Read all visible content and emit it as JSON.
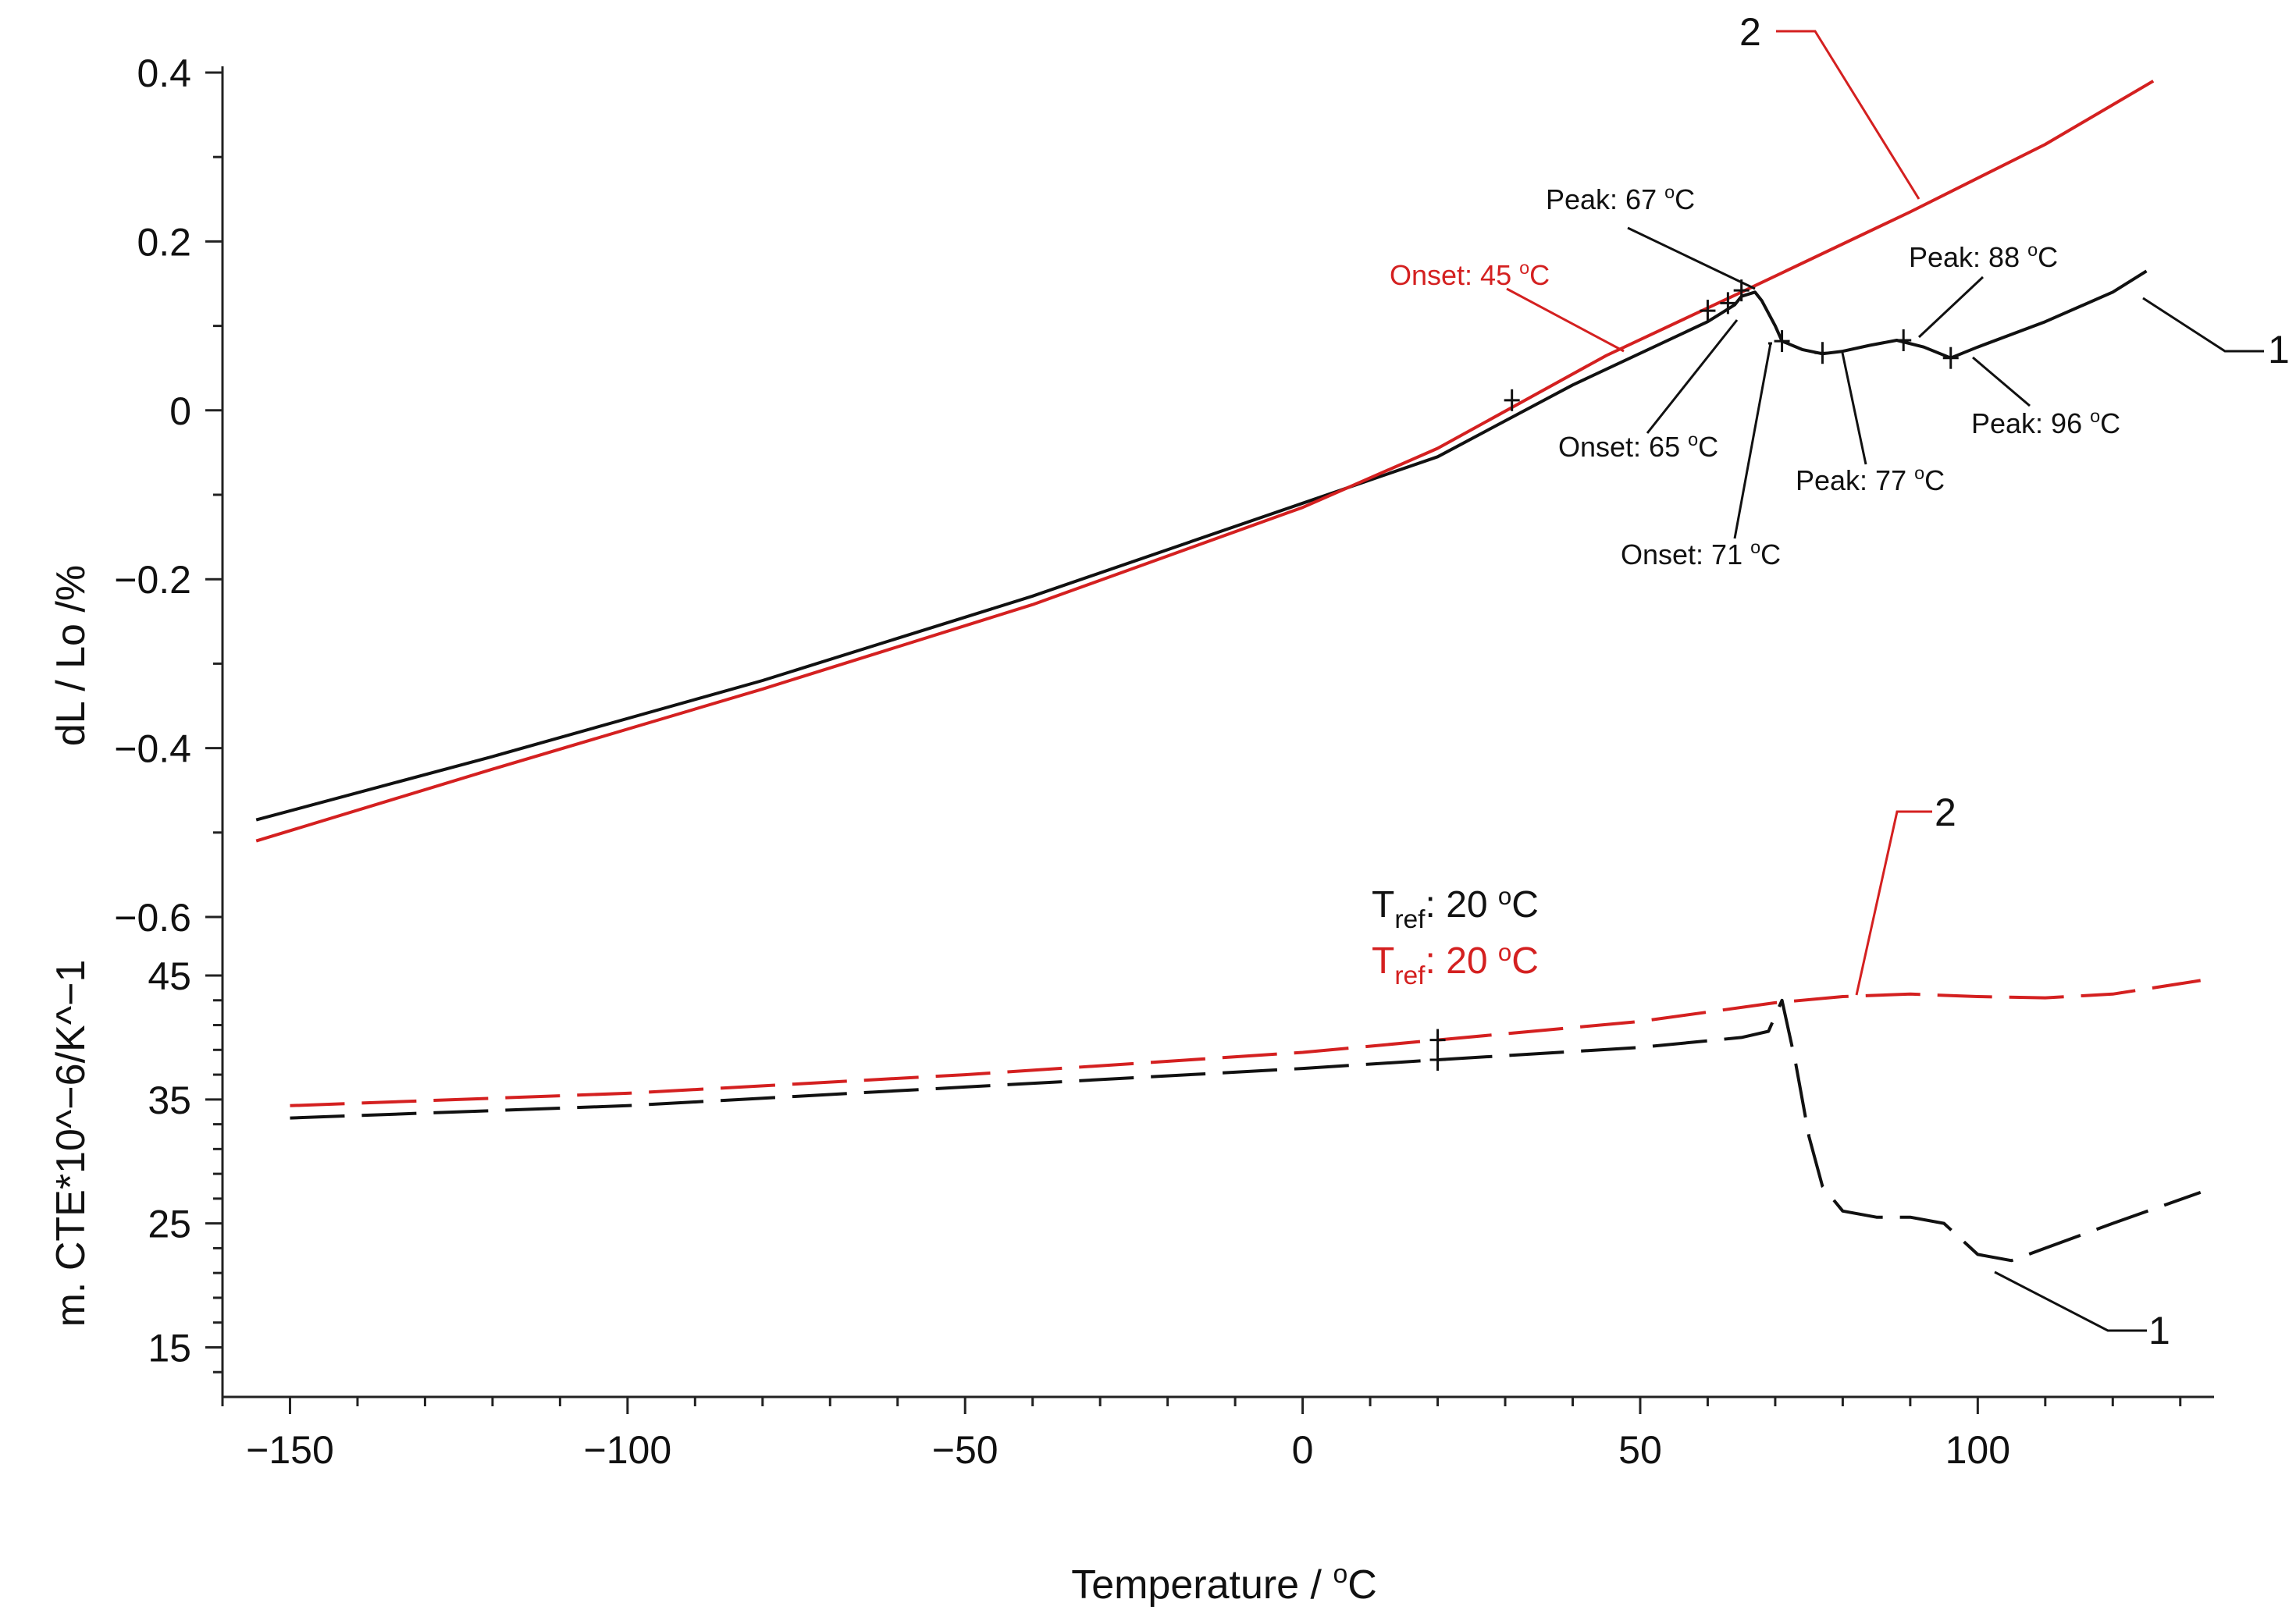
{
  "chart_data": {
    "type": "line",
    "title": "",
    "xlabel": {
      "main": "Temperature / ",
      "sup": "o",
      "unit": "C"
    },
    "xlim": [
      -160,
      135
    ],
    "x_ticks": [
      -150,
      -100,
      -50,
      0,
      50,
      100
    ],
    "x_tick_labels": [
      "−150",
      "−100",
      "−50",
      "0",
      "50",
      "100"
    ],
    "colors": {
      "black": "#111111",
      "red": "#d42020"
    },
    "panels": [
      {
        "id": "dl",
        "ylabel": "dL / Lo /%",
        "ylim": [
          -0.6,
          0.4
        ],
        "y_ticks": [
          0.4,
          0.2,
          0,
          -0.2,
          -0.4,
          -0.6
        ],
        "y_tick_labels": [
          "0.4",
          "0.2",
          "0",
          "−0.2",
          "−0.4",
          "−0.6"
        ],
        "series": [
          {
            "name": "1",
            "color": "#111111",
            "dash": "solid",
            "x": [
              -155,
              -120,
              -80,
              -40,
              0,
              20,
              40,
              60,
              62,
              64,
              65,
              67,
              68,
              70,
              71,
              74,
              77,
              80,
              84,
              88,
              92,
              96,
              100,
              110,
              120,
              125
            ],
            "y": [
              -0.485,
              -0.41,
              -0.32,
              -0.22,
              -0.11,
              -0.055,
              0.03,
              0.105,
              0.115,
              0.125,
              0.135,
              0.14,
              0.13,
              0.1,
              0.082,
              0.072,
              0.067,
              0.07,
              0.077,
              0.083,
              0.075,
              0.062,
              0.075,
              0.105,
              0.14,
              0.165
            ]
          },
          {
            "name": "2",
            "color": "#d42020",
            "dash": "solid",
            "x": [
              -155,
              -120,
              -80,
              -40,
              0,
              20,
              45,
              65,
              90,
              110,
              126
            ],
            "y": [
              -0.51,
              -0.425,
              -0.33,
              -0.23,
              -0.115,
              -0.045,
              0.065,
              0.14,
              0.235,
              0.315,
              0.39
            ]
          }
        ],
        "annotations": [
          {
            "text": "Peak: 67 °C",
            "color": "#111111"
          },
          {
            "text": "Onset: 45 °C",
            "color": "#d42020"
          },
          {
            "text": "Peak: 88 °C",
            "color": "#111111"
          },
          {
            "text": "Onset: 65 °C",
            "color": "#111111"
          },
          {
            "text": "Peak: 77 °C",
            "color": "#111111"
          },
          {
            "text": "Peak: 96 °C",
            "color": "#111111"
          },
          {
            "text": "Onset: 71 °C",
            "color": "#111111"
          }
        ],
        "series_labels": [
          "1",
          "2"
        ]
      },
      {
        "id": "cte",
        "ylabel": "m. CTE*10^−6/K^−1",
        "ylim": [
          11,
          45
        ],
        "y_ticks": [
          45,
          35,
          25,
          15
        ],
        "y_tick_labels": [
          "45",
          "35",
          "25",
          "15"
        ],
        "series": [
          {
            "name": "1",
            "color": "#111111",
            "dash": "dashed",
            "x": [
              -150,
              -100,
              -50,
              0,
              20,
              50,
              65,
              69,
              71,
              73,
              75,
              77,
              80,
              85,
              90,
              95,
              100,
              105,
              110,
              120,
              133
            ],
            "y": [
              33.5,
              34.5,
              36,
              37.5,
              38.2,
              39.2,
              40,
              40.5,
              43,
              38,
              32,
              28,
              26,
              25.5,
              25.5,
              25,
              22.5,
              22,
              23,
              25,
              27.5
            ]
          },
          {
            "name": "2",
            "color": "#d42020",
            "dash": "dashed",
            "x": [
              -150,
              -100,
              -50,
              0,
              20,
              50,
              70,
              80,
              90,
              100,
              110,
              120,
              133
            ],
            "y": [
              34.5,
              35.5,
              37,
              38.8,
              39.8,
              41.3,
              42.8,
              43.3,
              43.5,
              43.3,
              43.2,
              43.5,
              44.6
            ]
          }
        ],
        "tref_labels": [
          {
            "sym": "T",
            "sub": "ref",
            "text": ": 20 °C",
            "color": "#111111"
          },
          {
            "sym": "T",
            "sub": "ref",
            "text": ": 20 °C",
            "color": "#d42020"
          }
        ],
        "series_labels": [
          "2",
          "1"
        ]
      }
    ]
  }
}
